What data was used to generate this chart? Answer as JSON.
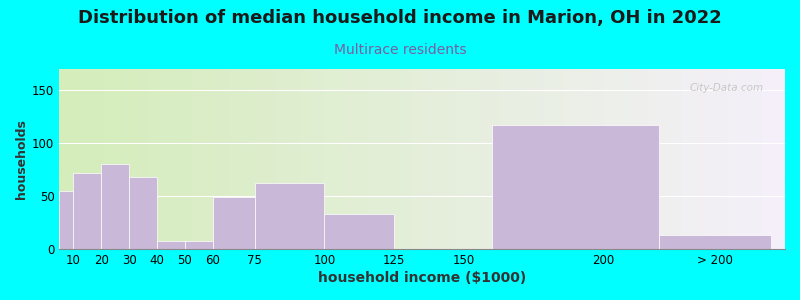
{
  "title": "Distribution of median household income in Marion, OH in 2022",
  "subtitle": "Multirace residents",
  "xlabel": "household income ($1000)",
  "ylabel": "households",
  "background_color": "#00FFFF",
  "plot_bg_gradient_left": "#d4edba",
  "plot_bg_gradient_right": "#f5f0fa",
  "bar_color": "#c9b8d8",
  "title_fontsize": 13,
  "subtitle_fontsize": 10,
  "subtitle_color": "#7a5fa0",
  "ylabel_fontsize": 9,
  "xlabel_fontsize": 10,
  "tick_positions": [
    10,
    20,
    30,
    40,
    50,
    60,
    75,
    100,
    125,
    150,
    200,
    240
  ],
  "tick_labels": [
    "10",
    "20",
    "30",
    "40",
    "50",
    "60",
    "75",
    "100",
    "125",
    "150",
    "200",
    "> 200"
  ],
  "bar_lefts": [
    5,
    10,
    20,
    30,
    40,
    50,
    60,
    75,
    100,
    125,
    160,
    220
  ],
  "bar_rights": [
    10,
    20,
    30,
    40,
    50,
    60,
    75,
    100,
    125,
    150,
    220,
    260
  ],
  "bar_heights": [
    55,
    72,
    80,
    68,
    8,
    8,
    49,
    62,
    33,
    0,
    117,
    13
  ],
  "xlim": [
    5,
    265
  ],
  "ylim": [
    0,
    170
  ],
  "yticks": [
    0,
    50,
    100,
    150
  ],
  "watermark": "City-Data.com"
}
